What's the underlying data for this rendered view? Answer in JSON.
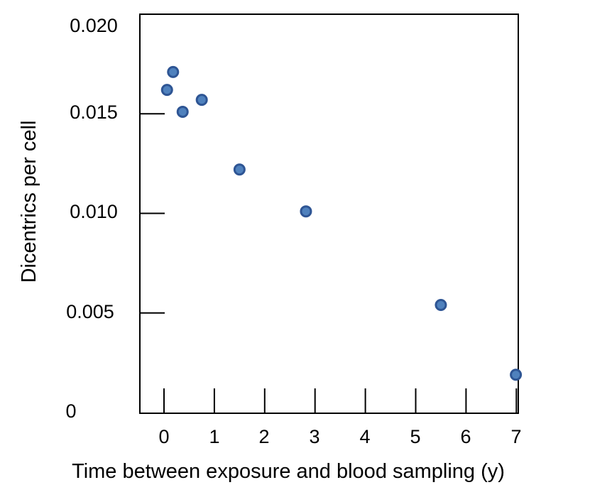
{
  "chart_data": {
    "type": "scatter",
    "xlabel": "Time between exposure and blood sampling (y)",
    "ylabel": "Dicentrics per cell",
    "xlim": [
      -0.5,
      7
    ],
    "ylim": [
      0,
      0.02
    ],
    "x_ticks": [
      "0",
      "1",
      "2",
      "3",
      "4",
      "5",
      "6",
      "7"
    ],
    "y_ticks": [
      "0",
      "0.005",
      "0.010",
      "0.015",
      "0.020"
    ],
    "grid": false,
    "legend": "none",
    "marker_color": "#4f81bd",
    "marker_edge_color": "#2e5594",
    "series": [
      {
        "x": [
          0.06,
          0.18,
          0.37,
          0.75,
          1.5,
          2.82,
          5.5,
          6.99
        ],
        "y": [
          0.0162,
          0.0171,
          0.0151,
          0.0157,
          0.0122,
          0.0101,
          0.0054,
          0.0019
        ]
      }
    ]
  }
}
